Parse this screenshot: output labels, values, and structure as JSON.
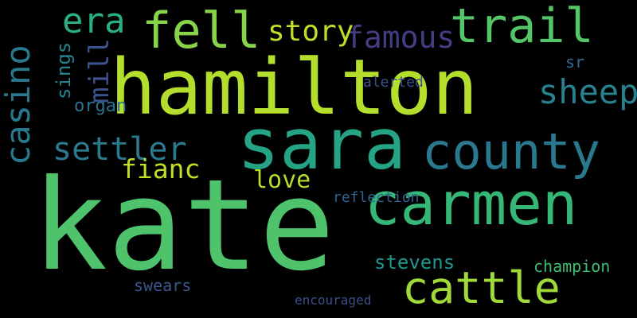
{
  "colors": {
    "background": "#000000"
  },
  "words": [
    {
      "text": "kate",
      "color": "#4ec36c"
    },
    {
      "text": "hamilton",
      "color": "#b4de2c"
    },
    {
      "text": "sara",
      "color": "#25a385"
    },
    {
      "text": "carmen",
      "color": "#35b778"
    },
    {
      "text": "county",
      "color": "#2a788e"
    },
    {
      "text": "cattle",
      "color": "#a0da39"
    },
    {
      "text": "trail",
      "color": "#55c667"
    },
    {
      "text": "fell",
      "color": "#87d449"
    },
    {
      "text": "settler",
      "color": "#2a7b8e"
    },
    {
      "text": "casino",
      "color": "#2a788e"
    },
    {
      "text": "famous",
      "color": "#433d84"
    },
    {
      "text": "sheep",
      "color": "#26828e"
    },
    {
      "text": "era",
      "color": "#2ab07f"
    },
    {
      "text": "story",
      "color": "#bddf26"
    },
    {
      "text": "fianc",
      "color": "#c2df23"
    },
    {
      "text": "love",
      "color": "#b5de2b"
    },
    {
      "text": "mill",
      "color": "#3b528b"
    },
    {
      "text": "sings",
      "color": "#26828e"
    },
    {
      "text": "stevens",
      "color": "#1f978b"
    },
    {
      "text": "champion",
      "color": "#3fbc73"
    },
    {
      "text": "organ",
      "color": "#2c728e"
    },
    {
      "text": "reflection",
      "color": "#33638d"
    },
    {
      "text": "sr",
      "color": "#2f6c8e"
    },
    {
      "text": "swears",
      "color": "#38588c"
    },
    {
      "text": "alerted",
      "color": "#3c508b"
    },
    {
      "text": "encouraged",
      "color": "#3c4f8a"
    }
  ]
}
